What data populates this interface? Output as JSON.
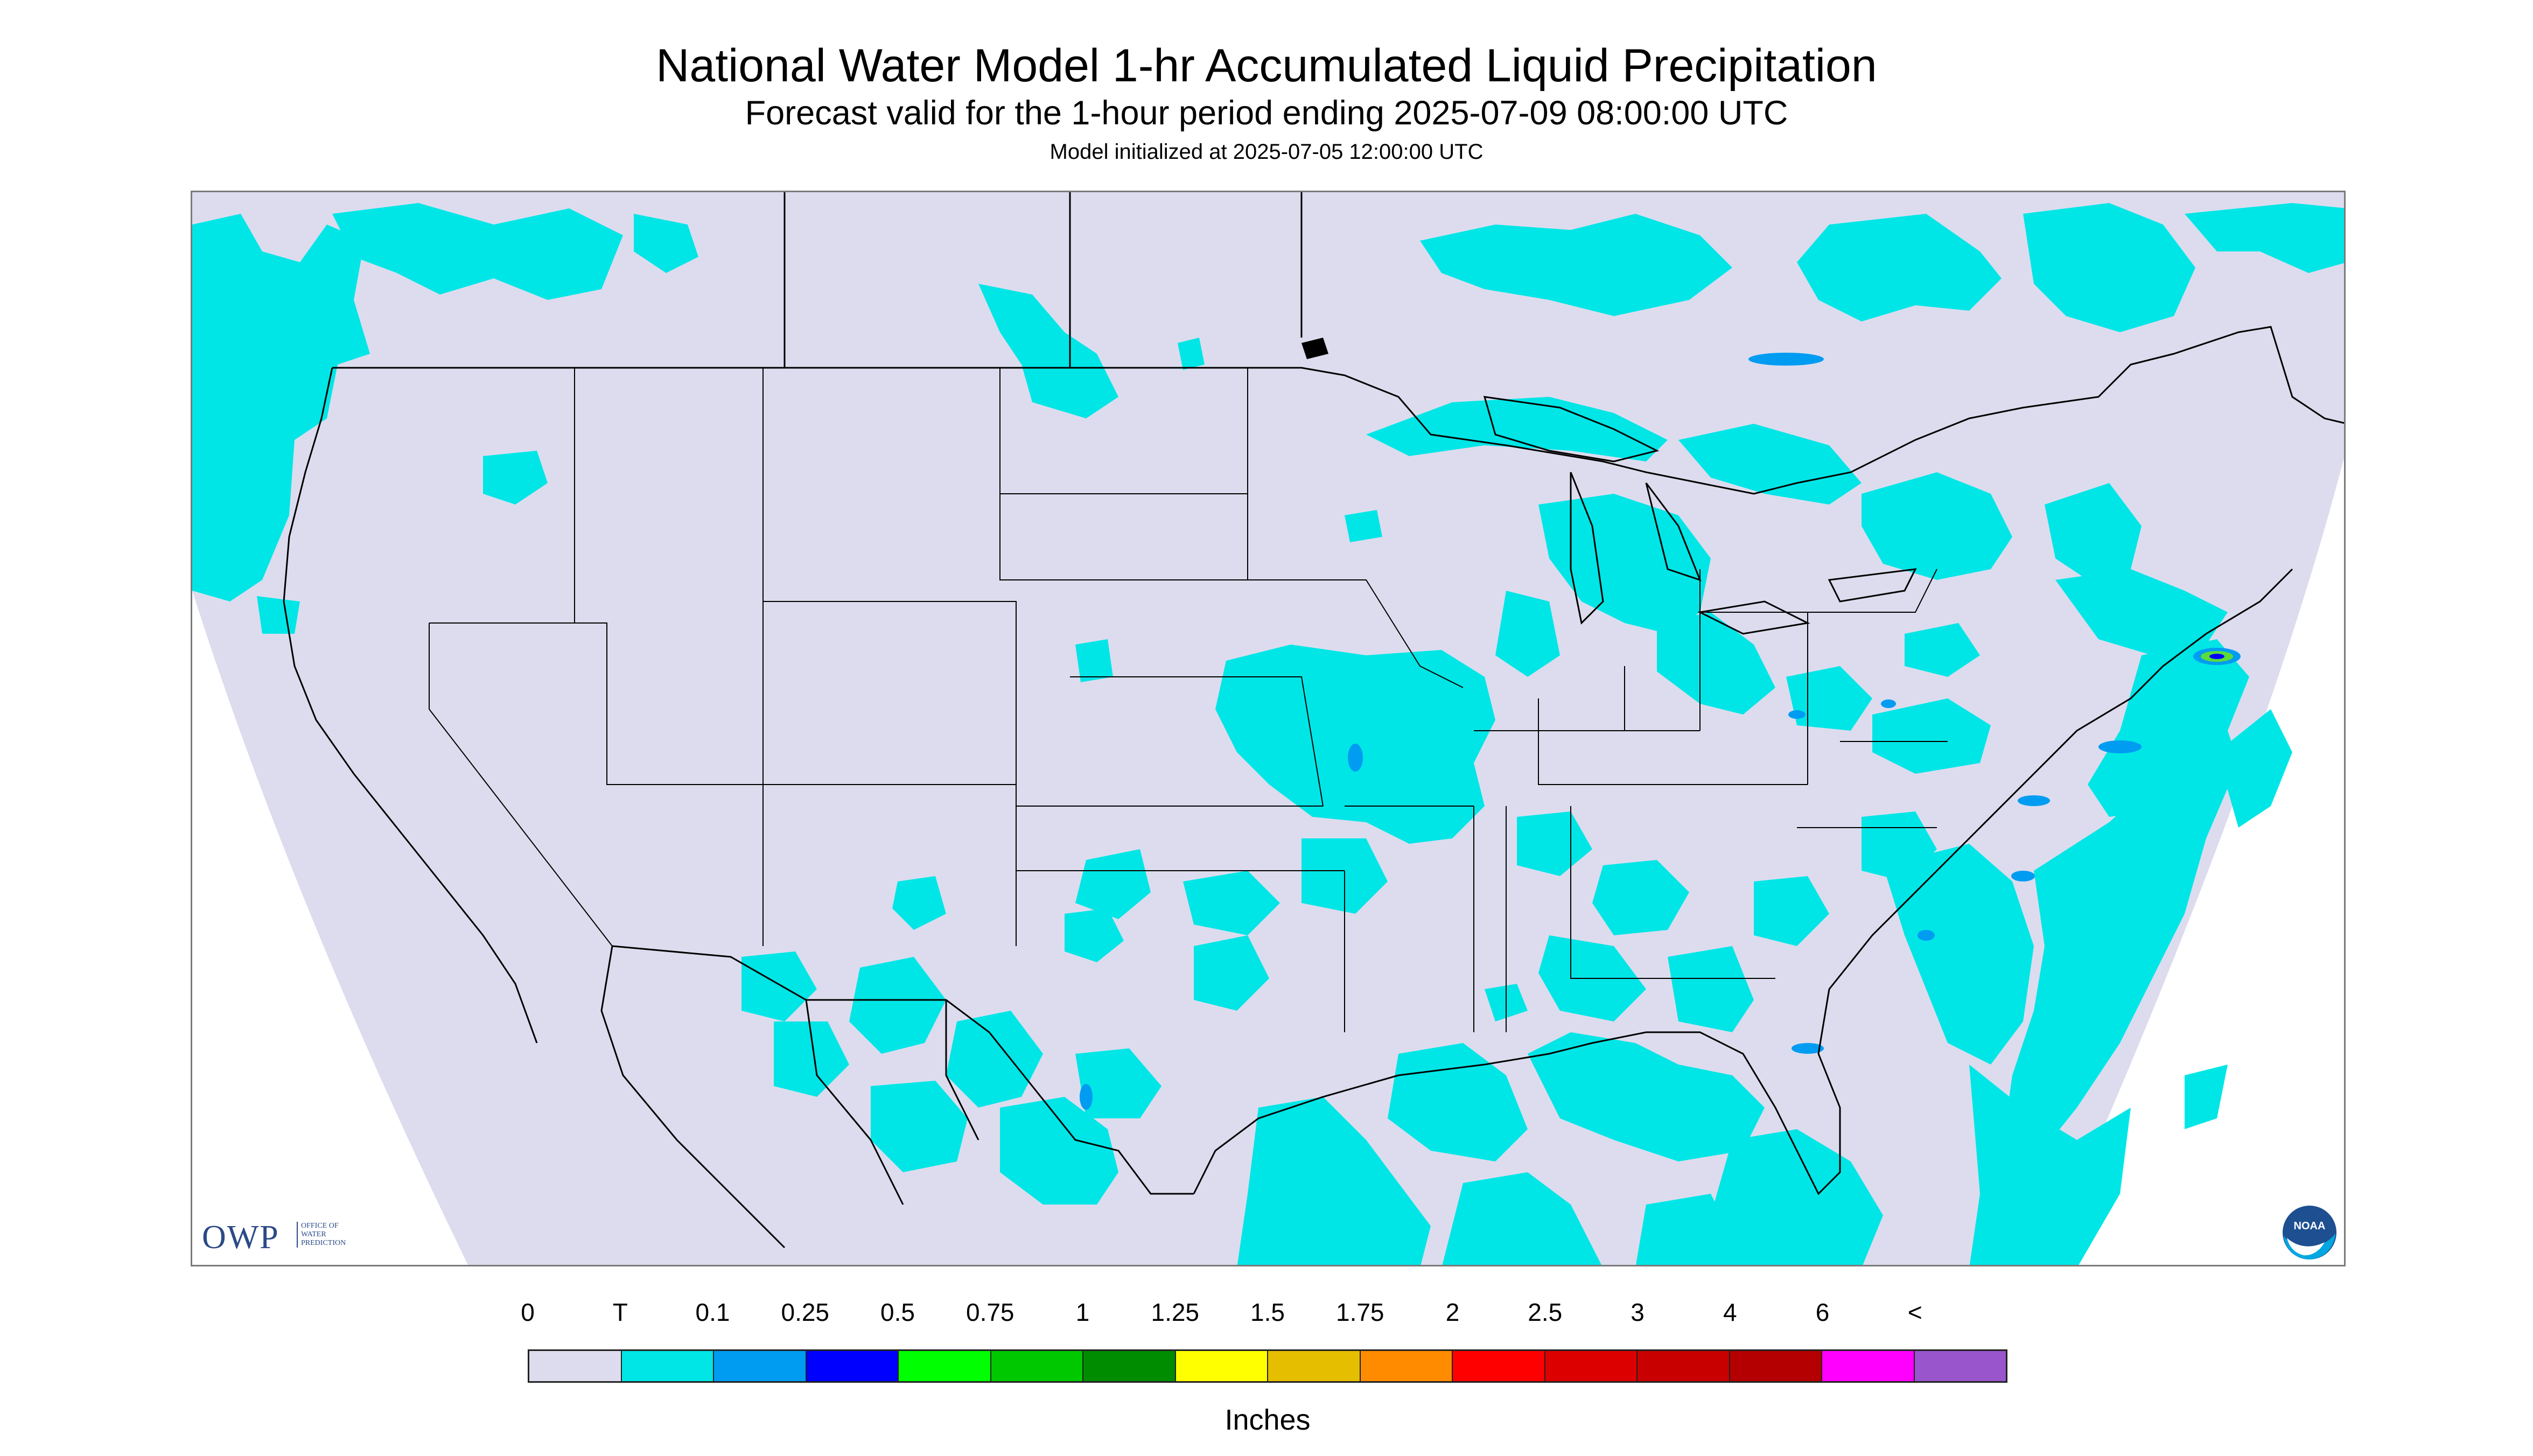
{
  "header": {
    "title": "National Water Model 1-hr Accumulated Liquid Precipitation",
    "subtitle": "Forecast valid for the 1-hour period ending 2025-07-09 08:00:00 UTC",
    "init": "Model initialized at 2025-07-05 12:00:00 UTC"
  },
  "logos": {
    "owp_mark": "OWP",
    "owp_sub": "OFFICE OF WATER PREDICTION",
    "noaa_label": "NOAA"
  },
  "map": {
    "background_color": "#dcdcee",
    "trace_color": "#00e6e6",
    "light_color": "#009cf2",
    "heavy_color": "#5adc3c",
    "boundary_color": "#000000"
  },
  "legend": {
    "units": "Inches",
    "ticks": [
      "0",
      "T",
      "0.1",
      "0.25",
      "0.5",
      "0.75",
      "1",
      "1.25",
      "1.5",
      "1.75",
      "2",
      "2.5",
      "3",
      "4",
      "6",
      "<"
    ],
    "colors": [
      "#dcdcee",
      "#00e6e6",
      "#009cf2",
      "#0000ff",
      "#00ff00",
      "#00c800",
      "#008c00",
      "#ffff00",
      "#e6be00",
      "#ff8c00",
      "#ff0000",
      "#dc0000",
      "#c80000",
      "#b40000",
      "#ff00ff",
      "#9955cc"
    ]
  }
}
